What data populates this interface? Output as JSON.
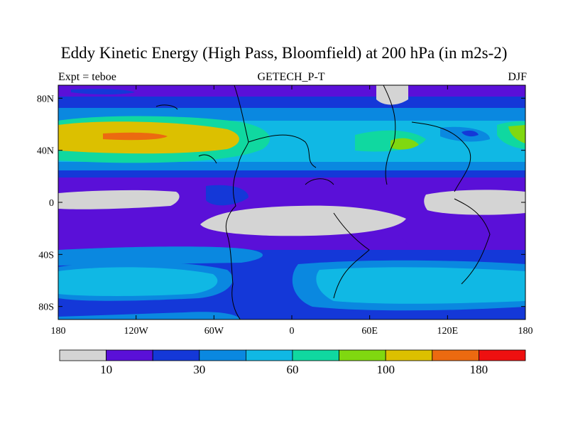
{
  "title": "Eddy Kinetic Energy (High Pass, Bloomfield) at 200 hPa (in m2s-2)",
  "left_subtitle": "Expt = teboe",
  "center_subtitle": "GETECH_P-T",
  "right_subtitle": "DJF",
  "x_ticks": [
    "180",
    "120W",
    "60W",
    "0",
    "60E",
    "120E",
    "180"
  ],
  "y_ticks": [
    "80N",
    "40N",
    "0",
    "40S",
    "80S"
  ],
  "colorbar": {
    "colors": [
      "#d4d4d4",
      "#5a10d8",
      "#1438d8",
      "#0a88e0",
      "#10b8e4",
      "#10d8a0",
      "#80d810",
      "#dcc000",
      "#ec6a10",
      "#ee1010"
    ],
    "labels": [
      "10",
      "30",
      "60",
      "100",
      "180"
    ]
  },
  "chart_data": {
    "type": "heatmap",
    "title": "Eddy Kinetic Energy (High Pass, Bloomfield) at 200 hPa (in m2s-2)",
    "subtitle_left": "Expt = teboe",
    "subtitle_center": "GETECH_P-T",
    "subtitle_right": "DJF",
    "x_range": [
      -180,
      180
    ],
    "y_range": [
      -90,
      90
    ],
    "x_ticks": [
      "180",
      "120W",
      "60W",
      "0",
      "60E",
      "120E",
      "180"
    ],
    "y_ticks": [
      "80N",
      "40N",
      "0",
      "40S",
      "80S"
    ],
    "colorbar_labels": [
      "10",
      "30",
      "60",
      "100",
      "180"
    ],
    "legend_placement": "bottom"
  }
}
